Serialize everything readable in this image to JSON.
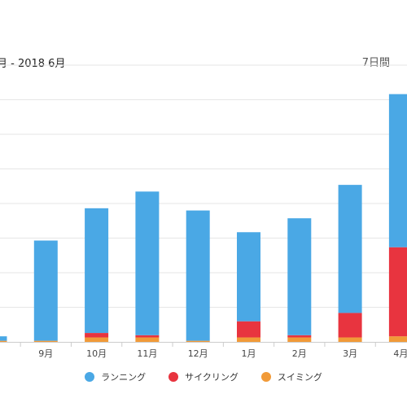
{
  "header": {
    "date_range": "月 - 2018 6月",
    "period_label": "7日間"
  },
  "colors": {
    "running": "#4aa8e5",
    "cycling": "#e8343f",
    "swimming": "#f19a38",
    "grid": "#e6e6e6",
    "axis": "#cccccc"
  },
  "chart_data": {
    "type": "bar",
    "stacked": true,
    "categories": [
      "",
      "9月",
      "10月",
      "11月",
      "12月",
      "1月",
      "2月",
      "3月",
      "4月"
    ],
    "series": [
      {
        "name": "スイミング",
        "color": "#f19a38",
        "values": [
          0.2,
          0.2,
          0.8,
          0.8,
          0.2,
          0.8,
          0.8,
          0.8,
          1
        ]
      },
      {
        "name": "サイクリング",
        "color": "#e8343f",
        "values": [
          0,
          0,
          0.8,
          0.4,
          0,
          2.9,
          0.4,
          4.4,
          16
        ]
      },
      {
        "name": "ランニング",
        "color": "#4aa8e5",
        "values": [
          0.8,
          18,
          22.4,
          25.8,
          23.4,
          16,
          21,
          23,
          27.5
        ]
      }
    ],
    "ylim": [
      0,
      50
    ],
    "grid": true,
    "legend": "bottom-center"
  }
}
